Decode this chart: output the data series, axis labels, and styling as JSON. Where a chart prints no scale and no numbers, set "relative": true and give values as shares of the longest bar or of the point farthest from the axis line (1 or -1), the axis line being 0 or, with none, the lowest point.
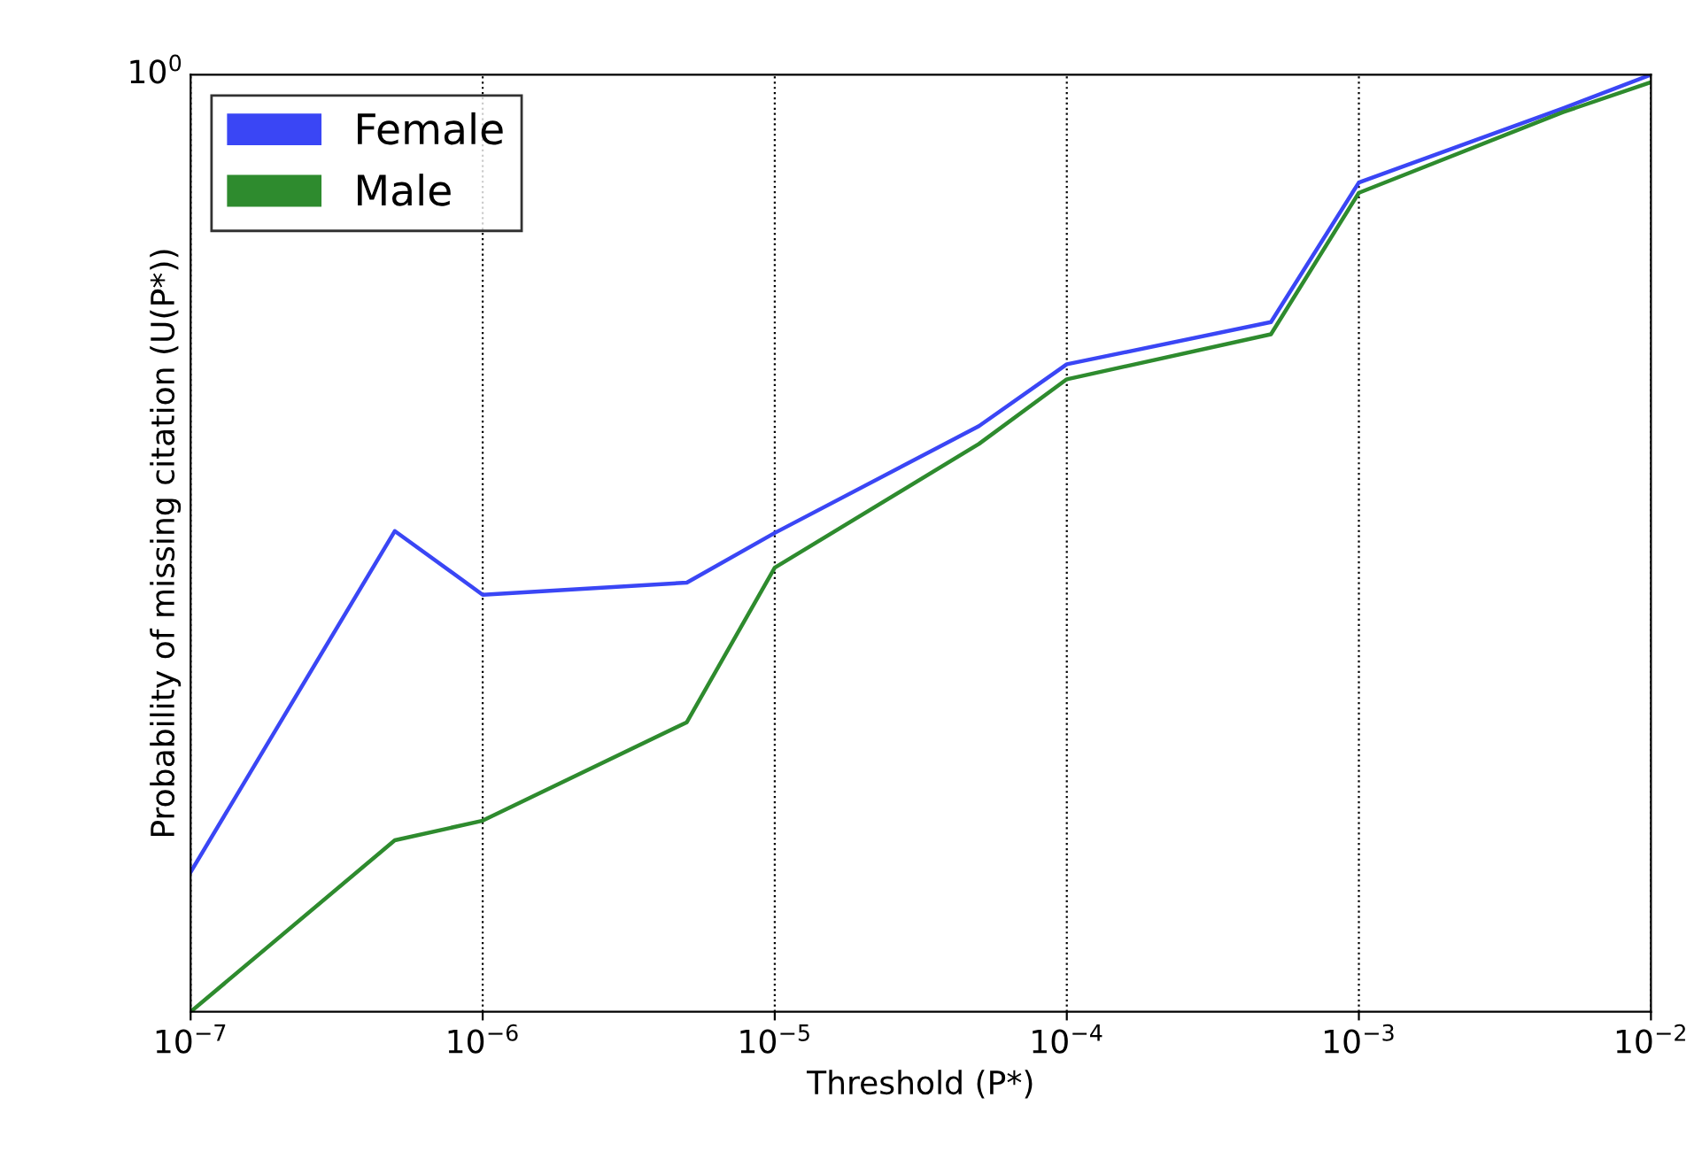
{
  "chart_data": {
    "type": "line",
    "xlabel": "Threshold (P*)",
    "ylabel": "Probability of missing citation (U(P*))",
    "relative": true,
    "log": "x",
    "x": [
      1e-07,
      5e-07,
      1e-06,
      5e-06,
      1e-05,
      5e-05,
      0.0001,
      0.0005,
      0.001,
      0.005,
      0.01
    ],
    "series": [
      {
        "name": "Female",
        "color": "#3a46f5",
        "values": [
          0.149,
          0.513,
          0.445,
          0.458,
          0.511,
          0.625,
          0.691,
          0.736,
          0.885,
          0.964,
          1.0
        ]
      },
      {
        "name": "Male",
        "color": "#2e8b2e",
        "values": [
          0.0,
          0.183,
          0.204,
          0.309,
          0.474,
          0.606,
          0.675,
          0.723,
          0.874,
          0.96,
          0.992
        ]
      }
    ],
    "xlim": [
      1e-07,
      0.01
    ],
    "xticks": [
      {
        "value": 1e-07,
        "label": "10$^{−7}$"
      },
      {
        "value": 1e-06,
        "label": "10$^{−6}$"
      },
      {
        "value": 1e-05,
        "label": "10$^{−5}$"
      },
      {
        "value": 0.0001,
        "label": "10$^{−4}$"
      },
      {
        "value": 0.001,
        "label": "10$^{−3}$"
      },
      {
        "value": 0.01,
        "label": "10$^{−2}$"
      }
    ],
    "annotations": [
      "10$^{0}$"
    ],
    "grid": "x",
    "legend": "top left"
  }
}
